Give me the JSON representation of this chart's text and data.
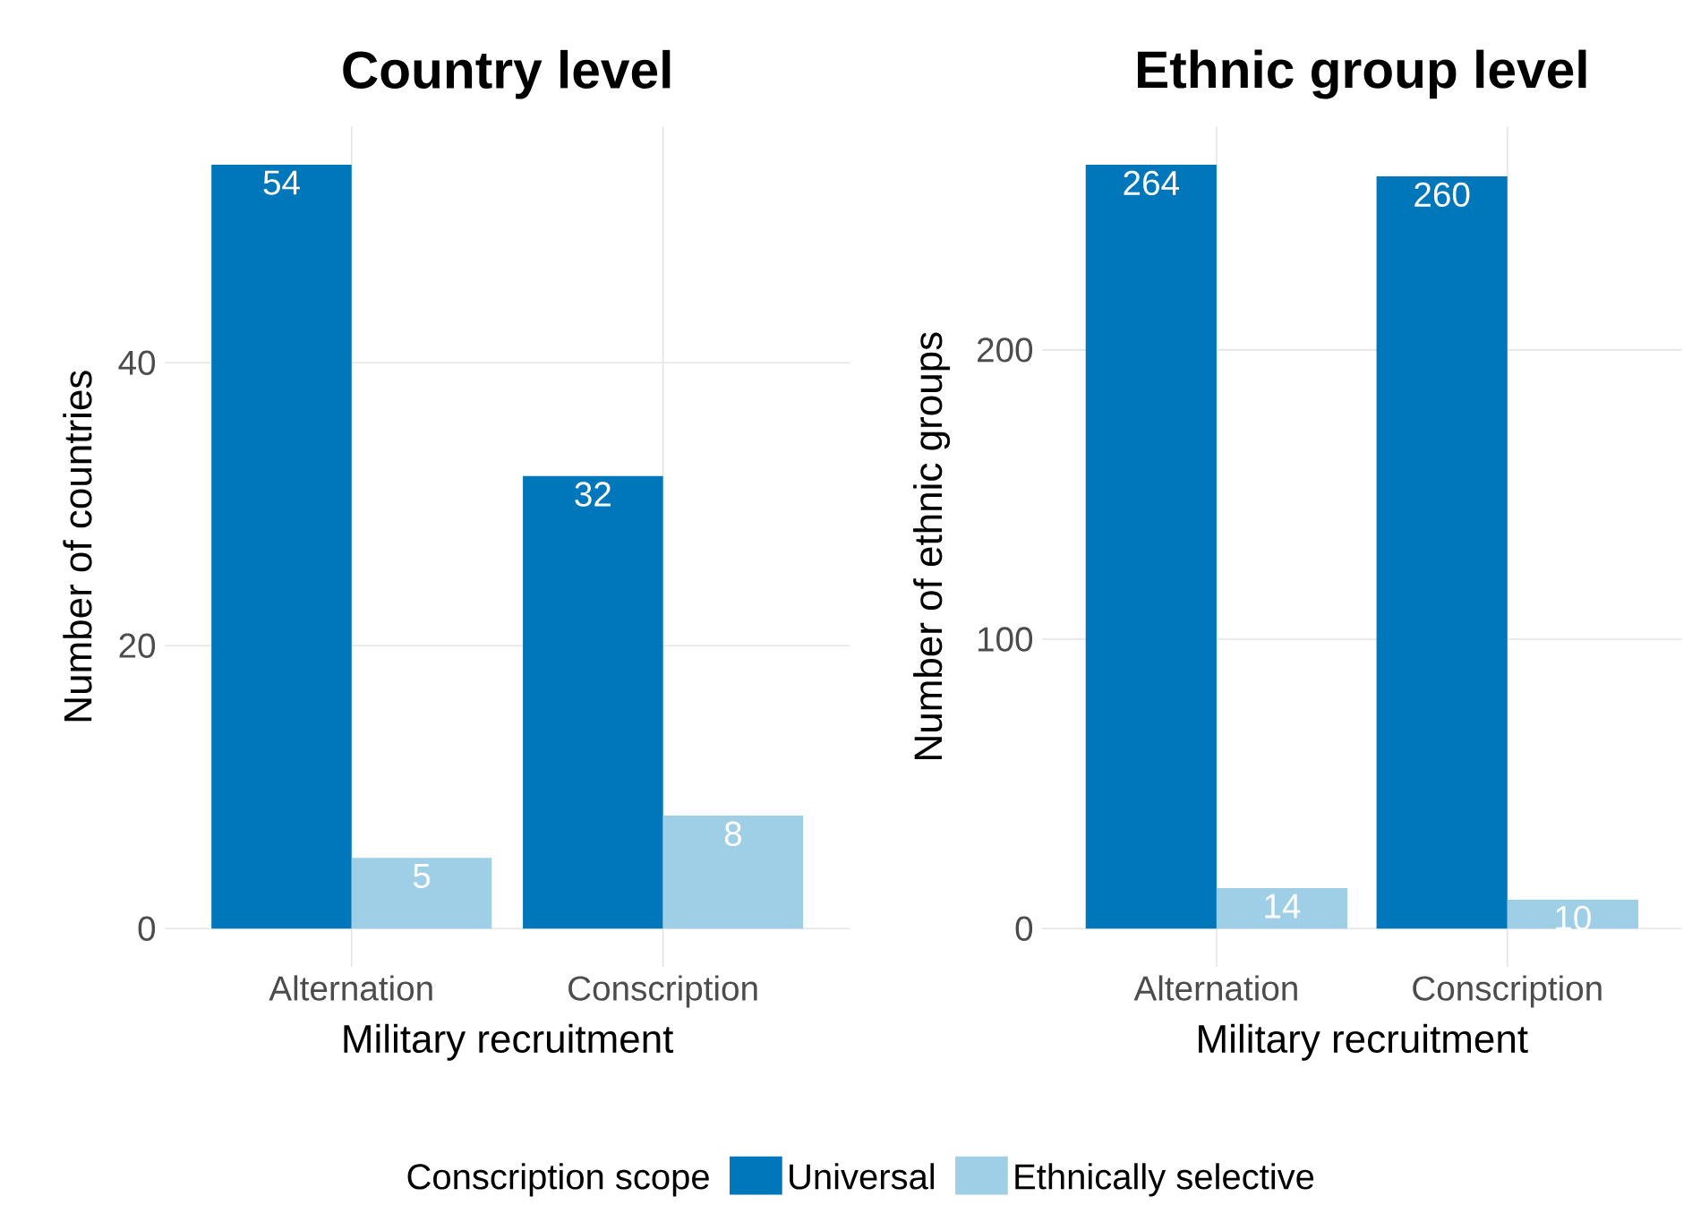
{
  "chart_data": [
    {
      "type": "bar",
      "title": "Country level",
      "xlabel": "Military recruitment",
      "ylabel": "Number of countries",
      "categories": [
        "Alternation",
        "Conscription"
      ],
      "series": [
        {
          "name": "Universal",
          "color": "#0077bb",
          "values": [
            54,
            32
          ]
        },
        {
          "name": "Ethnically selective",
          "color": "#9ecfe6",
          "values": [
            5,
            8
          ]
        }
      ],
      "ylim": [
        -2.7,
        56.7
      ],
      "yticks": [
        0,
        20,
        40
      ],
      "grid": true,
      "data_labels": true,
      "legend": "bottom",
      "legend_title": "Conscription scope"
    },
    {
      "type": "bar",
      "title": "Ethnic group level",
      "xlabel": "Military recruitment",
      "ylabel": "Number of ethnic groups",
      "categories": [
        "Alternation",
        "Conscription"
      ],
      "series": [
        {
          "color": "#0077bb",
          "values": [
            264,
            260
          ]
        },
        {
          "color": "#9ecfe6",
          "values": [
            14,
            10
          ]
        }
      ],
      "ylim": [
        -13.2,
        277.2
      ],
      "yticks": [
        0,
        100,
        200
      ],
      "grid": true,
      "data_labels": true
    }
  ]
}
